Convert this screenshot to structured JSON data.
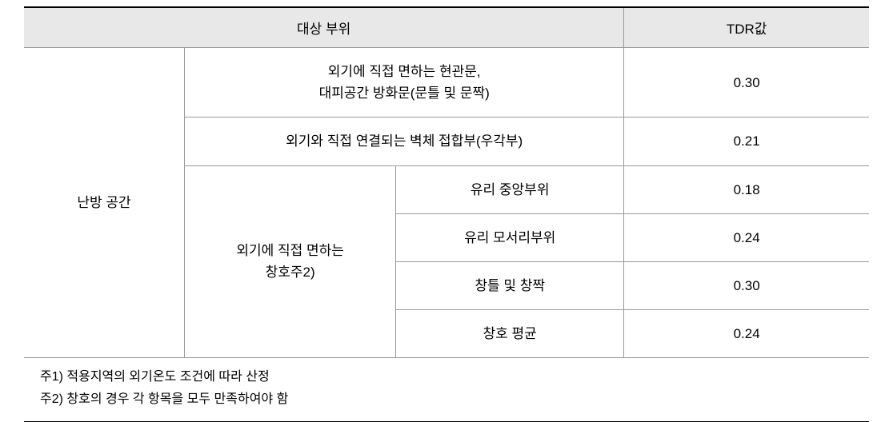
{
  "header": {
    "target_area": "대상 부위",
    "tdr_value": "TDR값"
  },
  "body": {
    "category": "난방 공간",
    "row1": {
      "desc": "외기에 직접 면하는 현관문,\n대피공간 방화문(문틀 및 문짝)",
      "value": "0.30"
    },
    "row2": {
      "desc": "외기와 직접 연결되는 벽체 접합부(우각부)",
      "value": "0.21"
    },
    "group": {
      "desc": "외기에 직접 면하는\n창호주2)",
      "items": [
        {
          "label": "유리 중앙부위",
          "value": "0.18"
        },
        {
          "label": "유리 모서리부위",
          "value": "0.24"
        },
        {
          "label": "창틀 및 창짝",
          "value": "0.30"
        },
        {
          "label": "창호 평균",
          "value": "0.24"
        }
      ]
    }
  },
  "footnotes": {
    "note1": "주1) 적용지역의 외기온도 조건에 따라 산정",
    "note2": "주2) 창호의 경우 각 항목을 모두 만족하여야 함"
  },
  "style": {
    "header_bg": "#e8e8e8",
    "border_main": "#000000",
    "border_inner": "#999999",
    "font_color": "#000000"
  }
}
